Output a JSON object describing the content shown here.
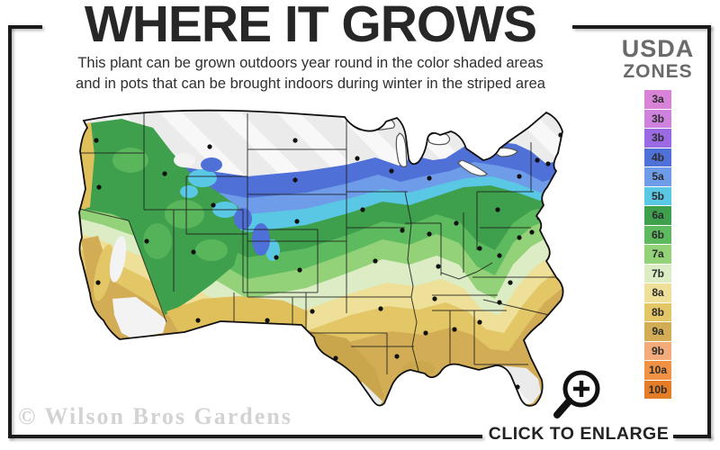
{
  "header": {
    "title": "WHERE IT GROWS",
    "subtitle_line1": "This plant can be grown outdoors year round in the color shaded areas",
    "subtitle_line2": "and in pots that can be brought indoors during winter in the striped area"
  },
  "legend": {
    "title_line1": "USDA",
    "title_line2": "ZONES",
    "zones": [
      {
        "label": "3a",
        "color": "#d883d8"
      },
      {
        "label": "3b",
        "color": "#ce82de"
      },
      {
        "label": "3b",
        "color": "#9b69e2"
      },
      {
        "label": "4b",
        "color": "#4f70d6"
      },
      {
        "label": "5a",
        "color": "#6f9ce8"
      },
      {
        "label": "5b",
        "color": "#5ac7e5"
      },
      {
        "label": "6a",
        "color": "#3e9f4c"
      },
      {
        "label": "6b",
        "color": "#5eba5e"
      },
      {
        "label": "7a",
        "color": "#93d279"
      },
      {
        "label": "7b",
        "color": "#dcedc5"
      },
      {
        "label": "8a",
        "color": "#eedf99"
      },
      {
        "label": "8b",
        "color": "#e3c766"
      },
      {
        "label": "9a",
        "color": "#d2ad55"
      },
      {
        "label": "9b",
        "color": "#f2ab79"
      },
      {
        "label": "10a",
        "color": "#f19143"
      },
      {
        "label": "10b",
        "color": "#e47d28"
      }
    ]
  },
  "map": {
    "description": "USDA hardiness zone map of the continental United States with color shaded growing areas, striped overwinter-indoors areas and city marker dots"
  },
  "footer": {
    "watermark": "© Wilson Bros Gardens",
    "enlarge_label": "CLICK TO ENLARGE",
    "magnifier_icon": "magnifying-glass-zoom-in"
  },
  "colors": {
    "frame": "#1b1b1b",
    "title": "#272727",
    "legend_title": "#6a6a6a",
    "watermark": "#d3d3d3",
    "map_outline": "#111111",
    "state_line": "#1c1c1c",
    "dot": "#111111",
    "stripe_base": "#ebebeb",
    "stripe_light": "#f8f8f8",
    "lake_fill": "#fdfdfd",
    "lake_stroke": "#555555",
    "band_overrides": {
      "west_green": "#3e9f4c",
      "west_green_light": "#5eba5e",
      "coast_gold": "#dfc05a",
      "ca_khaki": "#d2ad55",
      "valley_gold": "#e3c766",
      "sw_gold": "#dfc05a",
      "tx_khaki": "#c9a64c",
      "white_patch": "#f3f3f3"
    }
  }
}
